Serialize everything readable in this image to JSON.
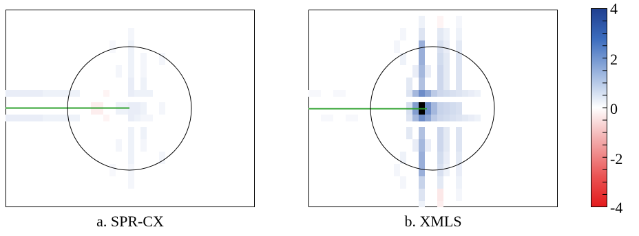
{
  "chart_data": [
    {
      "type": "heatmap",
      "caption": "a. SPR-CX",
      "colorbar_range": [
        -4,
        4
      ],
      "overlays": [
        "circle",
        "crack-line"
      ],
      "crack_color": "#2ca02c",
      "cells": [
        {
          "row": 2,
          "col": 12,
          "v": 0.2
        },
        {
          "row": 3,
          "col": 12,
          "v": 0.3
        },
        {
          "row": 4,
          "col": 12,
          "v": 0.3
        },
        {
          "row": 5,
          "col": 12,
          "v": 0.3
        },
        {
          "row": 6,
          "col": 12,
          "v": 0.4
        },
        {
          "row": 7,
          "col": 12,
          "v": 0.4
        },
        {
          "row": 8,
          "col": 12,
          "v": 0.4
        },
        {
          "row": 9,
          "col": 12,
          "v": 0.4
        },
        {
          "row": 10,
          "col": 12,
          "v": 0.3
        },
        {
          "row": 11,
          "col": 12,
          "v": 0.3
        },
        {
          "row": 12,
          "col": 12,
          "v": 0.3
        },
        {
          "row": 13,
          "col": 12,
          "v": 0.2
        },
        {
          "row": 14,
          "col": 12,
          "v": 0.2
        },
        {
          "row": 4,
          "col": 14,
          "v": 0.2
        },
        {
          "row": 5,
          "col": 14,
          "v": 0.2
        },
        {
          "row": 6,
          "col": 14,
          "v": 0.3
        },
        {
          "row": 10,
          "col": 14,
          "v": 0.3
        },
        {
          "row": 11,
          "col": 14,
          "v": 0.2
        },
        {
          "row": 7,
          "col": 13,
          "v": 0.3
        },
        {
          "row": 7,
          "col": 14,
          "v": 0.3
        },
        {
          "row": 7,
          "col": 15,
          "v": 0.3
        },
        {
          "row": 9,
          "col": 13,
          "v": 0.3
        },
        {
          "row": 9,
          "col": 14,
          "v": 0.2
        },
        {
          "row": 9,
          "col": 15,
          "v": 0.2
        },
        {
          "row": 8,
          "col": 13,
          "v": 0.4
        },
        {
          "row": 8,
          "col": 14,
          "v": 0.3
        },
        {
          "row": 7,
          "col": 0,
          "v": 0.4
        },
        {
          "row": 7,
          "col": 1,
          "v": 0.4
        },
        {
          "row": 7,
          "col": 2,
          "v": 0.4
        },
        {
          "row": 7,
          "col": 3,
          "v": 0.3
        },
        {
          "row": 7,
          "col": 4,
          "v": 0.3
        },
        {
          "row": 7,
          "col": 5,
          "v": 0.3
        },
        {
          "row": 9,
          "col": 0,
          "v": 0.4
        },
        {
          "row": 9,
          "col": 1,
          "v": 0.4
        },
        {
          "row": 9,
          "col": 2,
          "v": 0.4
        },
        {
          "row": 9,
          "col": 3,
          "v": 0.3
        },
        {
          "row": 9,
          "col": 4,
          "v": 0.3
        },
        {
          "row": 9,
          "col": 5,
          "v": 0.3
        },
        {
          "row": 8,
          "col": 6,
          "v": -0.3
        },
        {
          "row": 8,
          "col": 7,
          "v": -0.3
        },
        {
          "row": 7,
          "col": 8,
          "v": -0.2
        },
        {
          "row": 9,
          "col": 8,
          "v": -0.2
        },
        {
          "row": 8,
          "col": 10,
          "v": 0.3
        },
        {
          "row": 8,
          "col": 11,
          "v": 0.3
        },
        {
          "row": 5,
          "col": 10,
          "v": 0.2
        },
        {
          "row": 11,
          "col": 10,
          "v": 0.2
        },
        {
          "row": 4,
          "col": 17,
          "v": 0.2
        },
        {
          "row": 12,
          "col": 17,
          "v": 0.2
        },
        {
          "row": 8,
          "col": 17,
          "v": 0.2
        },
        {
          "row": 3,
          "col": 9,
          "v": 0.15
        },
        {
          "row": 13,
          "col": 9,
          "v": 0.15
        }
      ]
    },
    {
      "type": "heatmap",
      "caption": "b. XMLS",
      "colorbar_range": [
        -4,
        4
      ],
      "overlays": [
        "circle",
        "crack-line"
      ],
      "crack_color": "#2ca02c",
      "cells": [
        {
          "row": 8,
          "col": 10,
          "v": 4.0
        },
        {
          "row": 7,
          "col": 10,
          "v": 2.6
        },
        {
          "row": 9,
          "col": 10,
          "v": 2.6
        },
        {
          "row": 8,
          "col": 9,
          "v": 2.2
        },
        {
          "row": 8,
          "col": 11,
          "v": 2.6
        },
        {
          "row": 7,
          "col": 11,
          "v": 2.0
        },
        {
          "row": 9,
          "col": 11,
          "v": 2.0
        },
        {
          "row": 7,
          "col": 9,
          "v": 1.6
        },
        {
          "row": 9,
          "col": 9,
          "v": 1.6
        },
        {
          "row": 8,
          "col": 12,
          "v": 1.6
        },
        {
          "row": 7,
          "col": 12,
          "v": 1.2
        },
        {
          "row": 9,
          "col": 12,
          "v": 1.2
        },
        {
          "row": 3,
          "col": 10,
          "v": 1.8
        },
        {
          "row": 4,
          "col": 10,
          "v": 1.8
        },
        {
          "row": 5,
          "col": 10,
          "v": 1.6
        },
        {
          "row": 6,
          "col": 10,
          "v": 1.4
        },
        {
          "row": 10,
          "col": 10,
          "v": 1.4
        },
        {
          "row": 11,
          "col": 10,
          "v": 1.6
        },
        {
          "row": 12,
          "col": 10,
          "v": 1.8
        },
        {
          "row": 13,
          "col": 10,
          "v": 1.8
        },
        {
          "row": 14,
          "col": 10,
          "v": 1.0
        },
        {
          "row": 2,
          "col": 10,
          "v": 0.6
        },
        {
          "row": 2,
          "col": 13,
          "v": 0.5
        },
        {
          "row": 3,
          "col": 13,
          "v": 0.7
        },
        {
          "row": 4,
          "col": 13,
          "v": 0.8
        },
        {
          "row": 5,
          "col": 13,
          "v": 0.9
        },
        {
          "row": 6,
          "col": 13,
          "v": 0.9
        },
        {
          "row": 7,
          "col": 13,
          "v": 0.9
        },
        {
          "row": 8,
          "col": 13,
          "v": 1.0
        },
        {
          "row": 9,
          "col": 13,
          "v": 0.9
        },
        {
          "row": 10,
          "col": 13,
          "v": 0.9
        },
        {
          "row": 11,
          "col": 13,
          "v": 0.9
        },
        {
          "row": 12,
          "col": 13,
          "v": 0.8
        },
        {
          "row": 13,
          "col": 13,
          "v": 0.7
        },
        {
          "row": 14,
          "col": 13,
          "v": 0.5
        },
        {
          "row": 2,
          "col": 14,
          "v": 0.3
        },
        {
          "row": 3,
          "col": 14,
          "v": 0.4
        },
        {
          "row": 4,
          "col": 14,
          "v": 0.5
        },
        {
          "row": 5,
          "col": 14,
          "v": 0.5
        },
        {
          "row": 6,
          "col": 14,
          "v": 0.5
        },
        {
          "row": 10,
          "col": 14,
          "v": 0.5
        },
        {
          "row": 11,
          "col": 14,
          "v": 0.5
        },
        {
          "row": 12,
          "col": 14,
          "v": 0.4
        },
        {
          "row": 13,
          "col": 14,
          "v": 0.3
        },
        {
          "row": 2,
          "col": 16,
          "v": 0.3
        },
        {
          "row": 3,
          "col": 16,
          "v": 0.5
        },
        {
          "row": 4,
          "col": 16,
          "v": 0.6
        },
        {
          "row": 5,
          "col": 16,
          "v": 0.6
        },
        {
          "row": 6,
          "col": 16,
          "v": 0.6
        },
        {
          "row": 7,
          "col": 16,
          "v": 0.6
        },
        {
          "row": 8,
          "col": 16,
          "v": 0.7
        },
        {
          "row": 9,
          "col": 16,
          "v": 0.6
        },
        {
          "row": 10,
          "col": 16,
          "v": 0.6
        },
        {
          "row": 11,
          "col": 16,
          "v": 0.6
        },
        {
          "row": 12,
          "col": 16,
          "v": 0.5
        },
        {
          "row": 13,
          "col": 16,
          "v": 0.4
        },
        {
          "row": 7,
          "col": 14,
          "v": 0.8
        },
        {
          "row": 7,
          "col": 15,
          "v": 0.7
        },
        {
          "row": 7,
          "col": 17,
          "v": 0.5
        },
        {
          "row": 7,
          "col": 18,
          "v": 0.4
        },
        {
          "row": 7,
          "col": 19,
          "v": 0.3
        },
        {
          "row": 9,
          "col": 14,
          "v": 0.8
        },
        {
          "row": 9,
          "col": 15,
          "v": 0.7
        },
        {
          "row": 9,
          "col": 17,
          "v": 0.5
        },
        {
          "row": 9,
          "col": 18,
          "v": 0.4
        },
        {
          "row": 9,
          "col": 19,
          "v": 0.3
        },
        {
          "row": 8,
          "col": 14,
          "v": 0.9
        },
        {
          "row": 8,
          "col": 15,
          "v": 0.8
        },
        {
          "row": 6,
          "col": 8,
          "v": 0.5
        },
        {
          "row": 10,
          "col": 8,
          "v": 0.5
        },
        {
          "row": 7,
          "col": 8,
          "v": 0.6
        },
        {
          "row": 9,
          "col": 8,
          "v": 0.6
        },
        {
          "row": 8,
          "col": 8,
          "v": 0.7
        },
        {
          "row": 5,
          "col": 9,
          "v": 0.4
        },
        {
          "row": 11,
          "col": 9,
          "v": 0.4
        },
        {
          "row": 5,
          "col": 11,
          "v": 0.4
        },
        {
          "row": 11,
          "col": 11,
          "v": 0.4
        },
        {
          "row": 4,
          "col": 7,
          "v": 0.3
        },
        {
          "row": 12,
          "col": 7,
          "v": 0.3
        },
        {
          "row": 3,
          "col": 6,
          "v": 0.2
        },
        {
          "row": 13,
          "col": 6,
          "v": 0.2
        },
        {
          "row": 2,
          "col": 7,
          "v": 0.2
        },
        {
          "row": 14,
          "col": 7,
          "v": 0.2
        },
        {
          "row": 7,
          "col": 0,
          "v": 0.15
        },
        {
          "row": 7,
          "col": 2,
          "v": 0.15
        },
        {
          "row": 9,
          "col": 1,
          "v": 0.15
        },
        {
          "row": 9,
          "col": 3,
          "v": 0.15
        },
        {
          "row": 15,
          "col": 13,
          "v": -0.4
        },
        {
          "row": 16,
          "col": 13,
          "v": -0.3
        },
        {
          "row": 1,
          "col": 13,
          "v": -0.2
        },
        {
          "row": 15,
          "col": 10,
          "v": 0.6
        },
        {
          "row": 16,
          "col": 10,
          "v": 0.3
        },
        {
          "row": 1,
          "col": 10,
          "v": 0.3
        },
        {
          "row": 14,
          "col": 16,
          "v": 0.3
        },
        {
          "row": 15,
          "col": 16,
          "v": 0.2
        },
        {
          "row": 1,
          "col": 16,
          "v": 0.2
        }
      ]
    }
  ],
  "colorbar": {
    "min": -4,
    "max": 4,
    "tick_labels": [
      "4",
      "2",
      "0",
      "-2",
      "-4"
    ],
    "colors": {
      "negative": "#e31a1c",
      "zero": "#ffffff",
      "positive": "#1f4e9c",
      "max": "#000000"
    }
  }
}
